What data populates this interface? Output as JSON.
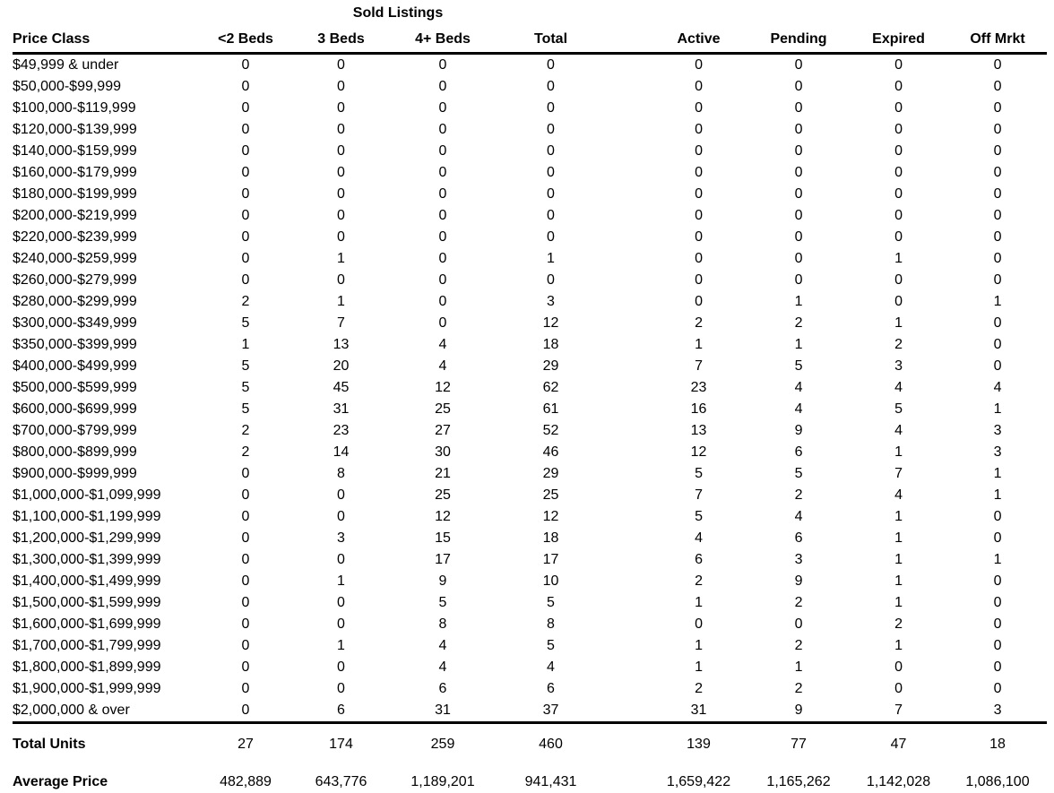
{
  "title": "Sold Listings",
  "table": {
    "columns": [
      "Price Class",
      "<2 Beds",
      "3 Beds",
      "4+ Beds",
      "Total",
      "Active",
      "Pending",
      "Expired",
      "Off Mrkt"
    ],
    "rows": [
      {
        "price_class": "$49,999 & under",
        "values": [
          0,
          0,
          0,
          0,
          0,
          0,
          0,
          0
        ]
      },
      {
        "price_class": "$50,000-$99,999",
        "values": [
          0,
          0,
          0,
          0,
          0,
          0,
          0,
          0
        ]
      },
      {
        "price_class": "$100,000-$119,999",
        "values": [
          0,
          0,
          0,
          0,
          0,
          0,
          0,
          0
        ]
      },
      {
        "price_class": "$120,000-$139,999",
        "values": [
          0,
          0,
          0,
          0,
          0,
          0,
          0,
          0
        ]
      },
      {
        "price_class": "$140,000-$159,999",
        "values": [
          0,
          0,
          0,
          0,
          0,
          0,
          0,
          0
        ]
      },
      {
        "price_class": "$160,000-$179,999",
        "values": [
          0,
          0,
          0,
          0,
          0,
          0,
          0,
          0
        ]
      },
      {
        "price_class": "$180,000-$199,999",
        "values": [
          0,
          0,
          0,
          0,
          0,
          0,
          0,
          0
        ]
      },
      {
        "price_class": "$200,000-$219,999",
        "values": [
          0,
          0,
          0,
          0,
          0,
          0,
          0,
          0
        ]
      },
      {
        "price_class": "$220,000-$239,999",
        "values": [
          0,
          0,
          0,
          0,
          0,
          0,
          0,
          0
        ]
      },
      {
        "price_class": "$240,000-$259,999",
        "values": [
          0,
          1,
          0,
          1,
          0,
          0,
          1,
          0
        ]
      },
      {
        "price_class": "$260,000-$279,999",
        "values": [
          0,
          0,
          0,
          0,
          0,
          0,
          0,
          0
        ]
      },
      {
        "price_class": "$280,000-$299,999",
        "values": [
          2,
          1,
          0,
          3,
          0,
          1,
          0,
          1
        ]
      },
      {
        "price_class": "$300,000-$349,999",
        "values": [
          5,
          7,
          0,
          12,
          2,
          2,
          1,
          0
        ]
      },
      {
        "price_class": "$350,000-$399,999",
        "values": [
          1,
          13,
          4,
          18,
          1,
          1,
          2,
          0
        ]
      },
      {
        "price_class": "$400,000-$499,999",
        "values": [
          5,
          20,
          4,
          29,
          7,
          5,
          3,
          0
        ]
      },
      {
        "price_class": "$500,000-$599,999",
        "values": [
          5,
          45,
          12,
          62,
          23,
          4,
          4,
          4
        ]
      },
      {
        "price_class": "$600,000-$699,999",
        "values": [
          5,
          31,
          25,
          61,
          16,
          4,
          5,
          1
        ]
      },
      {
        "price_class": "$700,000-$799,999",
        "values": [
          2,
          23,
          27,
          52,
          13,
          9,
          4,
          3
        ]
      },
      {
        "price_class": "$800,000-$899,999",
        "values": [
          2,
          14,
          30,
          46,
          12,
          6,
          1,
          3
        ]
      },
      {
        "price_class": "$900,000-$999,999",
        "values": [
          0,
          8,
          21,
          29,
          5,
          5,
          7,
          1
        ]
      },
      {
        "price_class": "$1,000,000-$1,099,999",
        "values": [
          0,
          0,
          25,
          25,
          7,
          2,
          4,
          1
        ]
      },
      {
        "price_class": "$1,100,000-$1,199,999",
        "values": [
          0,
          0,
          12,
          12,
          5,
          4,
          1,
          0
        ]
      },
      {
        "price_class": "$1,200,000-$1,299,999",
        "values": [
          0,
          3,
          15,
          18,
          4,
          6,
          1,
          0
        ]
      },
      {
        "price_class": "$1,300,000-$1,399,999",
        "values": [
          0,
          0,
          17,
          17,
          6,
          3,
          1,
          1
        ]
      },
      {
        "price_class": "$1,400,000-$1,499,999",
        "values": [
          0,
          1,
          9,
          10,
          2,
          9,
          1,
          0
        ]
      },
      {
        "price_class": "$1,500,000-$1,599,999",
        "values": [
          0,
          0,
          5,
          5,
          1,
          2,
          1,
          0
        ]
      },
      {
        "price_class": "$1,600,000-$1,699,999",
        "values": [
          0,
          0,
          8,
          8,
          0,
          0,
          2,
          0
        ]
      },
      {
        "price_class": "$1,700,000-$1,799,999",
        "values": [
          0,
          1,
          4,
          5,
          1,
          2,
          1,
          0
        ]
      },
      {
        "price_class": "$1,800,000-$1,899,999",
        "values": [
          0,
          0,
          4,
          4,
          1,
          1,
          0,
          0
        ]
      },
      {
        "price_class": "$1,900,000-$1,999,999",
        "values": [
          0,
          0,
          6,
          6,
          2,
          2,
          0,
          0
        ]
      },
      {
        "price_class": "$2,000,000 & over",
        "values": [
          0,
          6,
          31,
          37,
          31,
          9,
          7,
          3
        ]
      }
    ],
    "total_units": {
      "label": "Total Units",
      "values": [
        "27",
        "174",
        "259",
        "460",
        "139",
        "77",
        "47",
        "18"
      ]
    },
    "average_price": {
      "label": "Average Price",
      "values": [
        "482,889",
        "643,776",
        "1,189,201",
        "941,431",
        "1,659,422",
        "1,165,262",
        "1,142,028",
        "1,086,100"
      ]
    }
  }
}
